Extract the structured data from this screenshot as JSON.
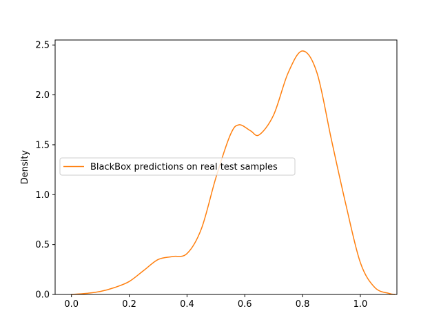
{
  "chart_data": {
    "type": "line",
    "title": "",
    "xlabel": "",
    "ylabel": "Density",
    "xlim": [
      -0.0566,
      1.1266
    ],
    "ylim": [
      0,
      2.55
    ],
    "grid": false,
    "legend_placement": "center-left",
    "xticks": [
      0.0,
      0.2,
      0.4,
      0.6,
      0.8,
      1.0
    ],
    "xtick_labels": [
      "0.0",
      "0.2",
      "0.4",
      "0.6",
      "0.8",
      "1.0"
    ],
    "yticks": [
      0.0,
      0.5,
      1.0,
      1.5,
      2.0,
      2.5
    ],
    "ytick_labels": [
      "0.0",
      "0.5",
      "1.0",
      "1.5",
      "2.0",
      "2.5"
    ],
    "series": [
      {
        "name": "BlackBox predictions on real test samples",
        "color": "#ff7f0e",
        "x": [
          0.0,
          0.05,
          0.1,
          0.15,
          0.2,
          0.25,
          0.3,
          0.35,
          0.4,
          0.45,
          0.5,
          0.55,
          0.58,
          0.62,
          0.65,
          0.7,
          0.75,
          0.8,
          0.85,
          0.9,
          0.95,
          1.0,
          1.05,
          1.1,
          1.12
        ],
        "y": [
          0.0,
          0.01,
          0.03,
          0.07,
          0.13,
          0.24,
          0.35,
          0.38,
          0.41,
          0.66,
          1.17,
          1.6,
          1.7,
          1.64,
          1.6,
          1.8,
          2.22,
          2.44,
          2.22,
          1.55,
          0.9,
          0.32,
          0.07,
          0.01,
          0.0
        ]
      }
    ]
  }
}
